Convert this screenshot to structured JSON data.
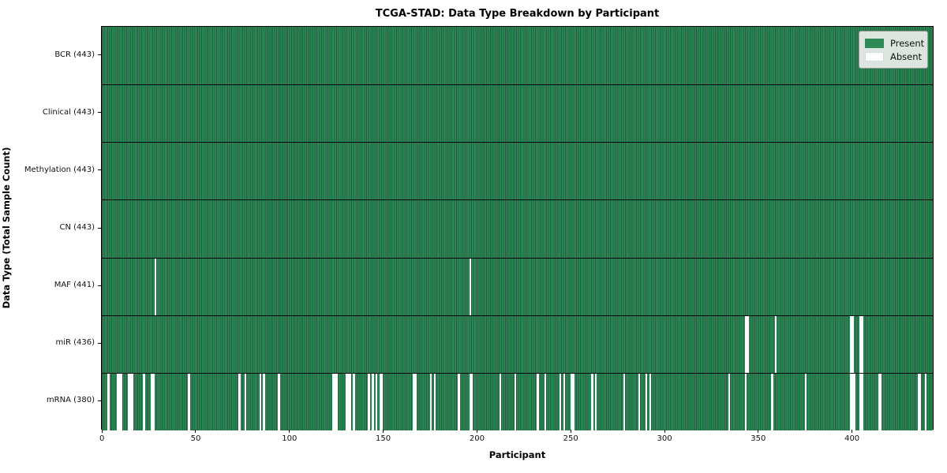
{
  "figure": {
    "title": "TCGA-STAD: Data Type Breakdown by Participant",
    "xlabel": "Participant",
    "ylabel": "Data Type (Total Sample Count)"
  },
  "legend": {
    "present_label": "Present",
    "absent_label": "Absent"
  },
  "colors": {
    "present_fill": "#2e8b57",
    "present_edge": "#1e5e3c",
    "absent_fill": "#ffffff",
    "row_divider": "#000000",
    "legend_bg": "#f0f1ef",
    "legend_border": "#9a9a9a"
  },
  "chart_data": {
    "type": "heatmap",
    "title": "TCGA-STAD: Data Type Breakdown by Participant",
    "xlabel": "Participant",
    "ylabel": "Data Type (Total Sample Count)",
    "legend_entries": [
      "Present",
      "Absent"
    ],
    "legend_position": "upper right",
    "grid": false,
    "n_participants": 443,
    "xlim": [
      -0.5,
      443.5
    ],
    "x_ticks": [
      0,
      50,
      100,
      150,
      200,
      250,
      300,
      350,
      400
    ],
    "rows": [
      {
        "data_type": "BCR",
        "label": "BCR (443)",
        "present_count": 443,
        "absent_participants": []
      },
      {
        "data_type": "Clinical",
        "label": "Clinical (443)",
        "present_count": 443,
        "absent_participants": []
      },
      {
        "data_type": "Methylation",
        "label": "Methylation (443)",
        "present_count": 443,
        "absent_participants": []
      },
      {
        "data_type": "CN",
        "label": "CN (443)",
        "present_count": 443,
        "absent_participants": []
      },
      {
        "data_type": "MAF",
        "label": "MAF (441)",
        "present_count": 441,
        "absent_participants": [
          28,
          196
        ]
      },
      {
        "data_type": "miR",
        "label": "miR (436)",
        "present_count": 436,
        "absent_participants": [
          343,
          344,
          359,
          399,
          400,
          404,
          405
        ]
      },
      {
        "data_type": "mRNA",
        "label": "mRNA (380)",
        "present_count": 380,
        "absent_participants": [
          3,
          8,
          9,
          10,
          14,
          15,
          16,
          22,
          26,
          27,
          46,
          73,
          76,
          84,
          86,
          94,
          123,
          124,
          125,
          130,
          131,
          132,
          134,
          142,
          144,
          146,
          148,
          149,
          166,
          167,
          175,
          177,
          190,
          196,
          197,
          212,
          220,
          232,
          236,
          244,
          246,
          250,
          251,
          261,
          263,
          278,
          286,
          290,
          292,
          334,
          343,
          357,
          375,
          399,
          400,
          401,
          404,
          405,
          414,
          415,
          435,
          436,
          439
        ]
      }
    ]
  }
}
